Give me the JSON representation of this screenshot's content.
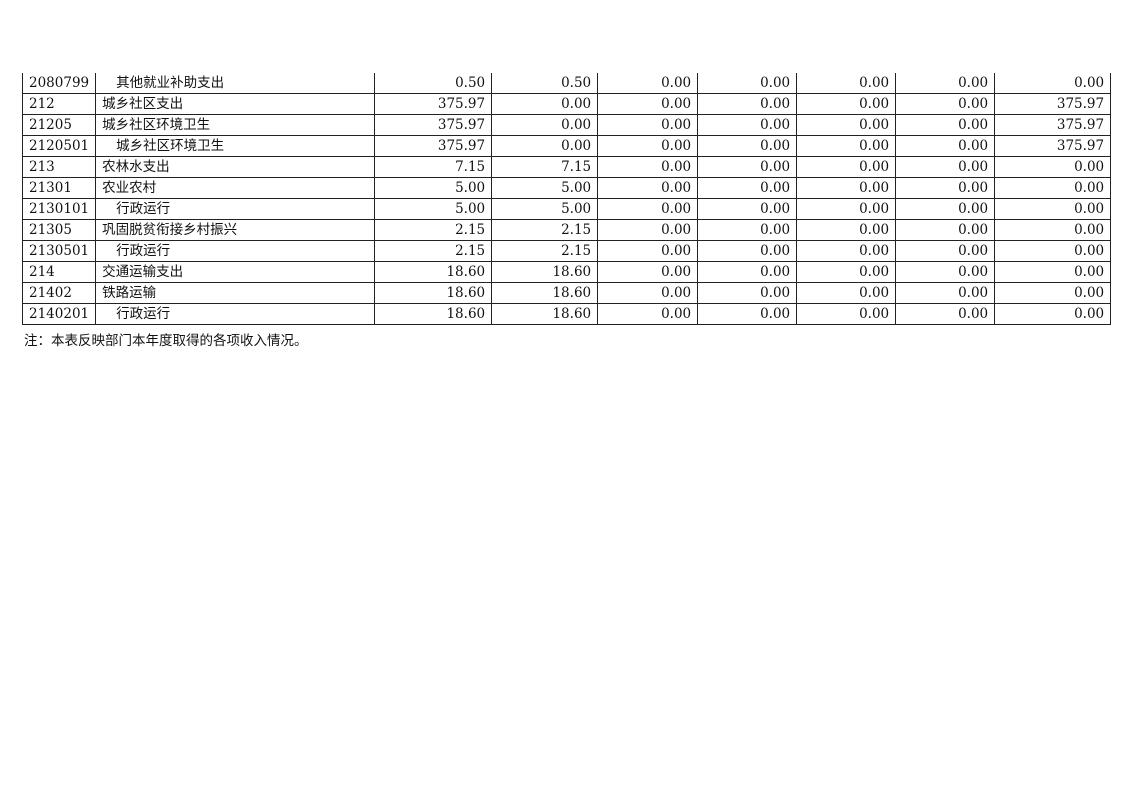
{
  "rows": [
    {
      "code": "2080799",
      "name": "其他就业补助支出",
      "indent": true,
      "values": [
        "0.50",
        "0.50",
        "0.00",
        "0.00",
        "0.00",
        "0.00",
        "0.00"
      ]
    },
    {
      "code": "212",
      "name": "城乡社区支出",
      "indent": false,
      "values": [
        "375.97",
        "0.00",
        "0.00",
        "0.00",
        "0.00",
        "0.00",
        "375.97"
      ]
    },
    {
      "code": "21205",
      "name": "城乡社区环境卫生",
      "indent": false,
      "values": [
        "375.97",
        "0.00",
        "0.00",
        "0.00",
        "0.00",
        "0.00",
        "375.97"
      ]
    },
    {
      "code": "2120501",
      "name": "城乡社区环境卫生",
      "indent": true,
      "values": [
        "375.97",
        "0.00",
        "0.00",
        "0.00",
        "0.00",
        "0.00",
        "375.97"
      ]
    },
    {
      "code": "213",
      "name": "农林水支出",
      "indent": false,
      "values": [
        "7.15",
        "7.15",
        "0.00",
        "0.00",
        "0.00",
        "0.00",
        "0.00"
      ]
    },
    {
      "code": "21301",
      "name": "农业农村",
      "indent": false,
      "values": [
        "5.00",
        "5.00",
        "0.00",
        "0.00",
        "0.00",
        "0.00",
        "0.00"
      ]
    },
    {
      "code": "2130101",
      "name": "行政运行",
      "indent": true,
      "values": [
        "5.00",
        "5.00",
        "0.00",
        "0.00",
        "0.00",
        "0.00",
        "0.00"
      ]
    },
    {
      "code": "21305",
      "name": "巩固脱贫衔接乡村振兴",
      "indent": false,
      "values": [
        "2.15",
        "2.15",
        "0.00",
        "0.00",
        "0.00",
        "0.00",
        "0.00"
      ]
    },
    {
      "code": "2130501",
      "name": "行政运行",
      "indent": true,
      "values": [
        "2.15",
        "2.15",
        "0.00",
        "0.00",
        "0.00",
        "0.00",
        "0.00"
      ]
    },
    {
      "code": "214",
      "name": "交通运输支出",
      "indent": false,
      "values": [
        "18.60",
        "18.60",
        "0.00",
        "0.00",
        "0.00",
        "0.00",
        "0.00"
      ]
    },
    {
      "code": "21402",
      "name": "铁路运输",
      "indent": false,
      "values": [
        "18.60",
        "18.60",
        "0.00",
        "0.00",
        "0.00",
        "0.00",
        "0.00"
      ]
    },
    {
      "code": "2140201",
      "name": "行政运行",
      "indent": true,
      "values": [
        "18.60",
        "18.60",
        "0.00",
        "0.00",
        "0.00",
        "0.00",
        "0.00"
      ]
    }
  ],
  "note": "注：本表反映部门本年度取得的各项收入情况。"
}
